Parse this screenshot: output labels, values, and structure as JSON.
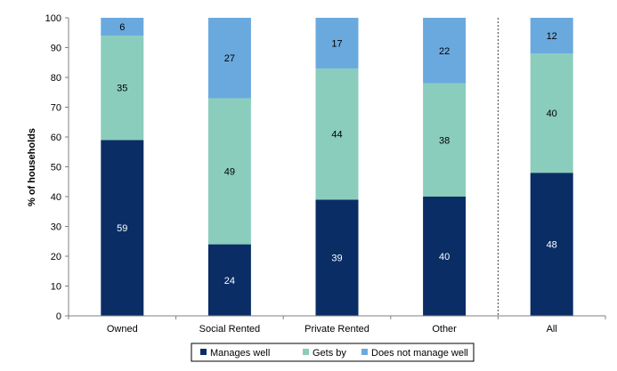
{
  "chart_data": {
    "type": "bar",
    "stacked": true,
    "categories": [
      "Owned",
      "Social Rented",
      "Private Rented",
      "Other",
      "All"
    ],
    "series": [
      {
        "name": "Manages well",
        "values": [
          59,
          24,
          39,
          40,
          48
        ],
        "color": "#0a2d65",
        "label_color": "#ffffff"
      },
      {
        "name": "Gets by",
        "values": [
          35,
          49,
          44,
          38,
          40
        ],
        "color": "#8acdbd",
        "label_color": "#000000"
      },
      {
        "name": "Does not manage well",
        "values": [
          6,
          27,
          17,
          22,
          12
        ],
        "color": "#6aa9de",
        "label_color": "#000000"
      }
    ],
    "title": "",
    "xlabel": "",
    "ylabel": "% of households",
    "ylim": [
      0,
      100
    ],
    "yticks": [
      0,
      10,
      20,
      30,
      40,
      50,
      60,
      70,
      80,
      90,
      100
    ],
    "grid": false,
    "legend_position": "bottom",
    "separator_before": "All"
  }
}
